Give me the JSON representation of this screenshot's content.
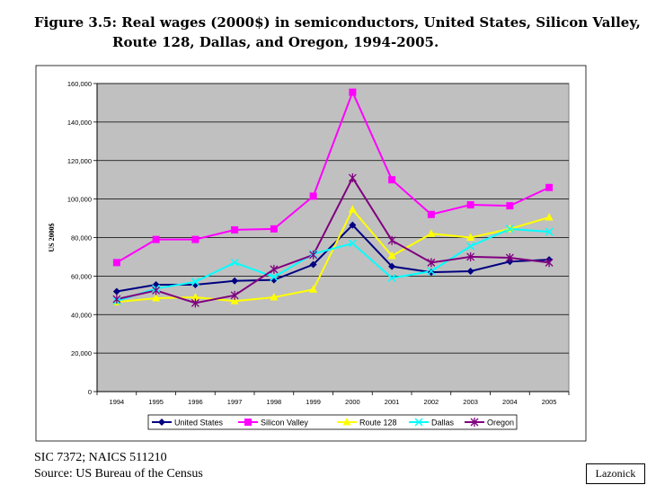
{
  "title_line1": "Figure 3.5: Real wages (2000$) in semiconductors, United States, Silicon Valley,",
  "title_line2": "Route 128, Dallas, and Oregon, 1994-2005.",
  "footnote_line1": "SIC 7372; NAICS 511210",
  "footnote_line2": "Source: US Bureau of the Census",
  "credit": "Lazonick",
  "colors": {
    "plot_bg": "#c0c0c0",
    "grid": "#000000"
  },
  "chart_data": {
    "type": "line",
    "title": "Figure 3.5: Real wages (2000$) in semiconductors, United States, Silicon Valley, Route 128, Dallas, and Oregon, 1994-2005.",
    "xlabel": "",
    "ylabel": "US 2000$",
    "ylim": [
      0,
      160000
    ],
    "y_ticks": [
      "0",
      "20,000",
      "40,000",
      "60,000",
      "80,000",
      "100,000",
      "120,000",
      "140,000",
      "160,000"
    ],
    "grid": true,
    "legend_position": "bottom",
    "categories": [
      "1994",
      "1995",
      "1996",
      "1997",
      "1998",
      "1999",
      "2000",
      "2001",
      "2002",
      "2003",
      "2004",
      "2005"
    ],
    "series": [
      {
        "name": "United States",
        "color": "#000080",
        "marker": "diamond",
        "values": [
          52000,
          55500,
          55500,
          57500,
          58000,
          66000,
          86500,
          65000,
          62000,
          62500,
          67500,
          68500
        ]
      },
      {
        "name": "Silicon Valley",
        "color": "#ff00ff",
        "marker": "square",
        "values": [
          67000,
          79000,
          79000,
          84000,
          84500,
          101500,
          155500,
          110000,
          92000,
          97000,
          96500,
          106000
        ]
      },
      {
        "name": "Route 128",
        "color": "#ffff00",
        "marker": "triangle",
        "values": [
          46500,
          48500,
          49000,
          47000,
          49000,
          53000,
          94500,
          70500,
          82000,
          80000,
          84500,
          90500
        ]
      },
      {
        "name": "Dallas",
        "color": "#00ffff",
        "marker": "x",
        "values": [
          47000,
          53500,
          57000,
          67000,
          59500,
          71500,
          77000,
          59000,
          62500,
          75500,
          84500,
          83000
        ]
      },
      {
        "name": "Oregon",
        "color": "#800080",
        "marker": "star",
        "values": [
          48000,
          52500,
          46000,
          50000,
          63500,
          71000,
          111000,
          78500,
          67000,
          70000,
          69500,
          67000
        ]
      }
    ]
  }
}
